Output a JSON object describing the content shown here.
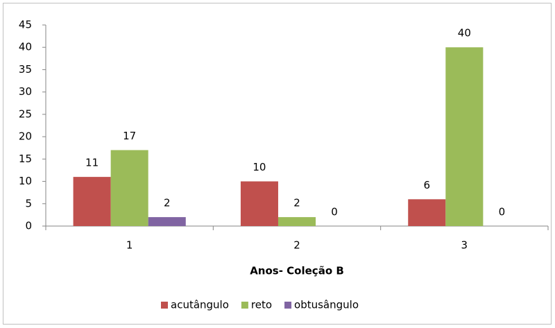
{
  "chart_data": {
    "type": "bar",
    "categories": [
      "1",
      "2",
      "3"
    ],
    "series": [
      {
        "name": "acutângulo",
        "color": "#c0504d",
        "values": [
          11,
          10,
          6
        ]
      },
      {
        "name": "reto",
        "color": "#9bbb59",
        "values": [
          17,
          2,
          40
        ]
      },
      {
        "name": "obtusângulo",
        "color": "#8064a2",
        "values": [
          2,
          0,
          0
        ]
      }
    ],
    "x_label": "Anos- Coleção B",
    "ylim": [
      0,
      45
    ],
    "yticks": [
      0,
      5,
      10,
      15,
      20,
      25,
      30,
      35,
      40,
      45
    ],
    "grid": false,
    "legend": "bottom",
    "data_labels": true
  }
}
